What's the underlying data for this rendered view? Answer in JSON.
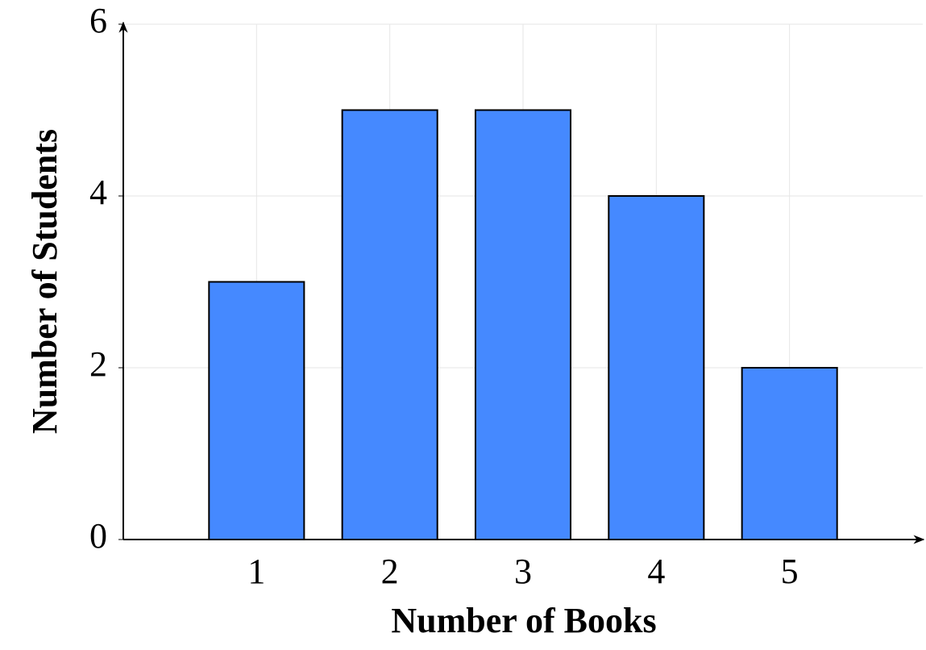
{
  "chart_data": {
    "type": "bar",
    "x_label": "Number of Books",
    "y_label": "Number of Students",
    "x": [
      1,
      2,
      3,
      4,
      5
    ],
    "values": [
      3,
      5,
      5,
      4,
      2
    ],
    "color": "#4589ff",
    "xlim": [
      0,
      6
    ],
    "xticks": [
      1,
      2,
      3,
      4,
      5
    ],
    "ylim": [
      0,
      6
    ],
    "yticks": [
      0,
      2,
      4,
      6
    ],
    "grid": true
  }
}
